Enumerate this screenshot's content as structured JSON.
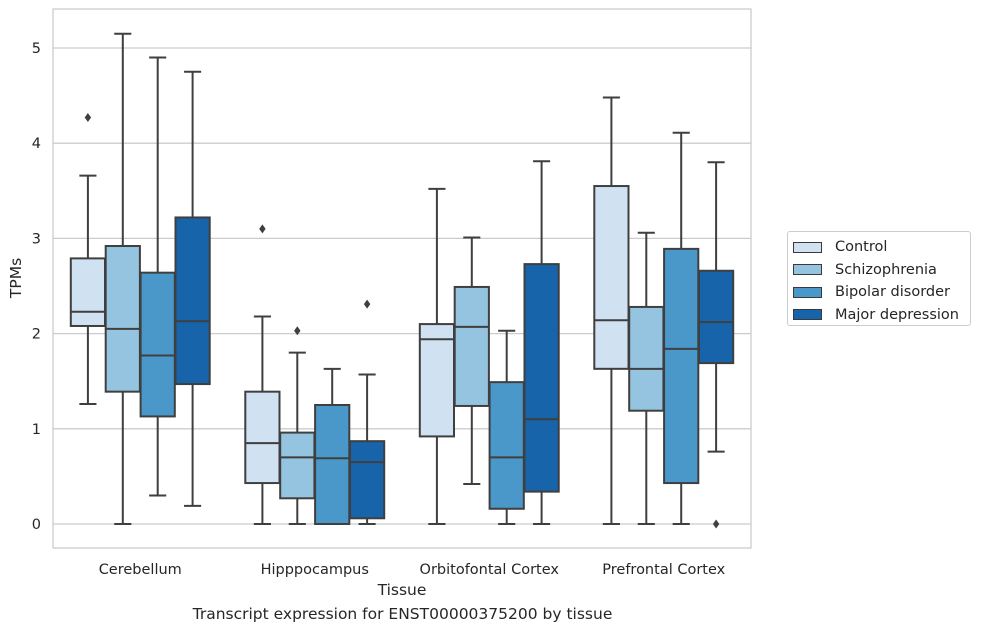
{
  "chart_data": {
    "type": "box",
    "xlabel": "Tissue",
    "ylabel": "TPMs",
    "caption": "Transcript expression for ENST00000375200 by tissue",
    "categories": [
      "Cerebellum",
      "Hipppocampus",
      "Orbitofontal Cortex",
      "Prefrontal Cortex"
    ],
    "ylim": [
      -0.25,
      5.4
    ],
    "yticks": [
      0,
      1,
      2,
      3,
      4,
      5
    ],
    "grid": "horizontal",
    "legend_position": "right",
    "series": [
      {
        "name": "Control",
        "color": "#d0e1f1",
        "boxes": [
          {
            "whisker_low": 1.26,
            "q1": 2.08,
            "median": 2.23,
            "q3": 2.79,
            "whisker_high": 3.66,
            "outliers": [
              4.27
            ]
          },
          {
            "whisker_low": 0.0,
            "q1": 0.43,
            "median": 0.85,
            "q3": 1.39,
            "whisker_high": 2.18,
            "outliers": [
              3.1
            ]
          },
          {
            "whisker_low": 0.0,
            "q1": 0.92,
            "median": 1.94,
            "q3": 2.1,
            "whisker_high": 3.52,
            "outliers": []
          },
          {
            "whisker_low": 0.0,
            "q1": 1.63,
            "median": 2.14,
            "q3": 3.55,
            "whisker_high": 4.48,
            "outliers": []
          }
        ]
      },
      {
        "name": "Schizophrenia",
        "color": "#94c4df",
        "boxes": [
          {
            "whisker_low": 0.0,
            "q1": 1.39,
            "median": 2.05,
            "q3": 2.92,
            "whisker_high": 5.15,
            "outliers": []
          },
          {
            "whisker_low": 0.0,
            "q1": 0.27,
            "median": 0.7,
            "q3": 0.96,
            "whisker_high": 1.8,
            "outliers": [
              2.03
            ]
          },
          {
            "whisker_low": 0.42,
            "q1": 1.24,
            "median": 2.07,
            "q3": 2.49,
            "whisker_high": 3.01,
            "outliers": []
          },
          {
            "whisker_low": 0.0,
            "q1": 1.19,
            "median": 1.63,
            "q3": 2.28,
            "whisker_high": 3.06,
            "outliers": []
          }
        ]
      },
      {
        "name": "Bipolar disorder",
        "color": "#4a98c9",
        "boxes": [
          {
            "whisker_low": 0.3,
            "q1": 1.13,
            "median": 1.77,
            "q3": 2.64,
            "whisker_high": 4.9,
            "outliers": []
          },
          {
            "whisker_low": 0.0,
            "q1": 0.0,
            "median": 0.69,
            "q3": 1.25,
            "whisker_high": 1.63,
            "outliers": []
          },
          {
            "whisker_low": 0.0,
            "q1": 0.16,
            "median": 0.7,
            "q3": 1.49,
            "whisker_high": 2.03,
            "outliers": []
          },
          {
            "whisker_low": 0.0,
            "q1": 0.43,
            "median": 1.84,
            "q3": 2.89,
            "whisker_high": 4.11,
            "outliers": []
          }
        ]
      },
      {
        "name": "Major depression",
        "color": "#1764ab",
        "boxes": [
          {
            "whisker_low": 0.19,
            "q1": 1.47,
            "median": 2.13,
            "q3": 3.22,
            "whisker_high": 4.75,
            "outliers": []
          },
          {
            "whisker_low": 0.0,
            "q1": 0.06,
            "median": 0.65,
            "q3": 0.87,
            "whisker_high": 1.57,
            "outliers": [
              2.31
            ]
          },
          {
            "whisker_low": 0.0,
            "q1": 0.34,
            "median": 1.1,
            "q3": 2.73,
            "whisker_high": 3.81,
            "outliers": []
          },
          {
            "whisker_low": 0.76,
            "q1": 1.69,
            "median": 2.12,
            "q3": 2.66,
            "whisker_high": 3.8,
            "outliers": [
              0.0
            ]
          }
        ]
      }
    ]
  }
}
